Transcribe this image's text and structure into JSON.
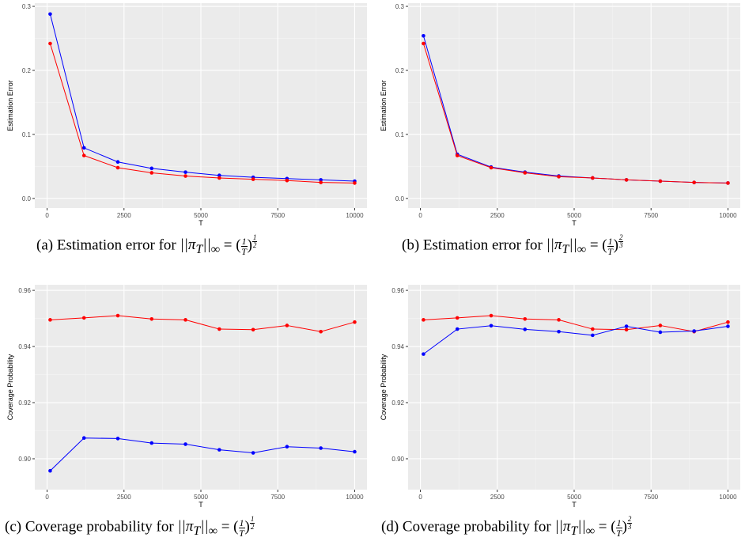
{
  "chart_data": [
    {
      "id": "a",
      "type": "line",
      "xlabel": "T",
      "ylabel": "Estimation Error",
      "xlim": [
        -400,
        10400
      ],
      "ylim": [
        -0.015,
        0.305
      ],
      "xticks": [
        0,
        2500,
        5000,
        7500,
        10000
      ],
      "xtick_labels": [
        "0",
        "2500",
        "5000",
        "7500",
        "10000"
      ],
      "yticks": [
        0.0,
        0.1,
        0.2,
        0.3
      ],
      "ytick_labels": [
        "0.0",
        "0.1",
        "0.2",
        "0.3"
      ],
      "grid": true,
      "x": [
        100,
        1200,
        2300,
        3400,
        4500,
        5600,
        6700,
        7800,
        8900,
        10000
      ],
      "series": [
        {
          "color": "#0000ff",
          "values": [
            0.288,
            0.079,
            0.057,
            0.047,
            0.041,
            0.036,
            0.033,
            0.031,
            0.029,
            0.027
          ]
        },
        {
          "color": "#ff0000",
          "values": [
            0.242,
            0.067,
            0.048,
            0.04,
            0.035,
            0.032,
            0.03,
            0.028,
            0.025,
            0.024
          ]
        }
      ],
      "caption": {
        "label": "(a) Estimation error for ",
        "math": "||π",
        "sub": "T",
        "rest": "||",
        "inf": "∞",
        "eq": " = (",
        "frac_num": "1",
        "frac_den": "T",
        "close": ")",
        "exp_num": "1",
        "exp_den": "2"
      }
    },
    {
      "id": "b",
      "type": "line",
      "xlabel": "T",
      "ylabel": "Estimation Error",
      "xlim": [
        -400,
        10400
      ],
      "ylim": [
        -0.015,
        0.305
      ],
      "xticks": [
        0,
        2500,
        5000,
        7500,
        10000
      ],
      "xtick_labels": [
        "0",
        "2500",
        "5000",
        "7500",
        "10000"
      ],
      "yticks": [
        0.0,
        0.1,
        0.2,
        0.3
      ],
      "ytick_labels": [
        "0.0",
        "0.1",
        "0.2",
        "0.3"
      ],
      "grid": true,
      "x": [
        100,
        1200,
        2300,
        3400,
        4500,
        5600,
        6700,
        7800,
        8900,
        10000
      ],
      "series": [
        {
          "color": "#0000ff",
          "values": [
            0.254,
            0.069,
            0.049,
            0.041,
            0.035,
            0.032,
            0.029,
            0.027,
            0.025,
            0.024
          ]
        },
        {
          "color": "#ff0000",
          "values": [
            0.242,
            0.067,
            0.048,
            0.04,
            0.034,
            0.032,
            0.029,
            0.027,
            0.025,
            0.024
          ]
        }
      ],
      "caption": {
        "label": "(b) Estimation error for ",
        "math": "||π",
        "sub": "T",
        "rest": "||",
        "inf": "∞",
        "eq": " = (",
        "frac_num": "1",
        "frac_den": "T",
        "close": ")",
        "exp_num": "2",
        "exp_den": "3"
      }
    },
    {
      "id": "c",
      "type": "line",
      "xlabel": "T",
      "ylabel": "Coverage Probability",
      "xlim": [
        -400,
        10400
      ],
      "ylim": [
        0.889,
        0.962
      ],
      "xticks": [
        0,
        2500,
        5000,
        7500,
        10000
      ],
      "xtick_labels": [
        "0",
        "2500",
        "5000",
        "7500",
        "10000"
      ],
      "yticks": [
        0.9,
        0.92,
        0.94,
        0.96
      ],
      "ytick_labels": [
        "0.90",
        "0.92",
        "0.94",
        "0.96"
      ],
      "grid": true,
      "x": [
        100,
        1200,
        2300,
        3400,
        4500,
        5600,
        6700,
        7800,
        8900,
        10000
      ],
      "series": [
        {
          "color": "#ff0000",
          "values": [
            0.9495,
            0.9502,
            0.951,
            0.9498,
            0.9495,
            0.9462,
            0.946,
            0.9475,
            0.9453,
            0.9487
          ]
        },
        {
          "color": "#0000ff",
          "values": [
            0.8957,
            0.9074,
            0.9072,
            0.9056,
            0.9052,
            0.9032,
            0.9021,
            0.9043,
            0.9038,
            0.9025
          ]
        }
      ],
      "caption": {
        "label": "(c) Coverage probability for ",
        "math": "||π",
        "sub": "T",
        "rest": "||",
        "inf": "∞",
        "eq": " = (",
        "frac_num": "1",
        "frac_den": "T",
        "close": ")",
        "exp_num": "1",
        "exp_den": "2"
      }
    },
    {
      "id": "d",
      "type": "line",
      "xlabel": "T",
      "ylabel": "Coverage Probability",
      "xlim": [
        -400,
        10400
      ],
      "ylim": [
        0.889,
        0.962
      ],
      "xticks": [
        0,
        2500,
        5000,
        7500,
        10000
      ],
      "xtick_labels": [
        "0",
        "2500",
        "5000",
        "7500",
        "10000"
      ],
      "yticks": [
        0.9,
        0.92,
        0.94,
        0.96
      ],
      "ytick_labels": [
        "0.90",
        "0.92",
        "0.94",
        "0.96"
      ],
      "grid": true,
      "x": [
        100,
        1200,
        2300,
        3400,
        4500,
        5600,
        6700,
        7800,
        8900,
        10000
      ],
      "series": [
        {
          "color": "#ff0000",
          "values": [
            0.9495,
            0.9502,
            0.951,
            0.9498,
            0.9495,
            0.9462,
            0.946,
            0.9475,
            0.9453,
            0.9487
          ]
        },
        {
          "color": "#0000ff",
          "values": [
            0.9373,
            0.9462,
            0.9474,
            0.9461,
            0.9453,
            0.944,
            0.9472,
            0.9451,
            0.9455,
            0.9472
          ]
        }
      ],
      "caption": {
        "label": "(d) Coverage probability for ",
        "math": "||π",
        "sub": "T",
        "rest": "||",
        "inf": "∞",
        "eq": " = (",
        "frac_num": "1",
        "frac_den": "T",
        "close": ")",
        "exp_num": "2",
        "exp_den": "3"
      }
    }
  ]
}
